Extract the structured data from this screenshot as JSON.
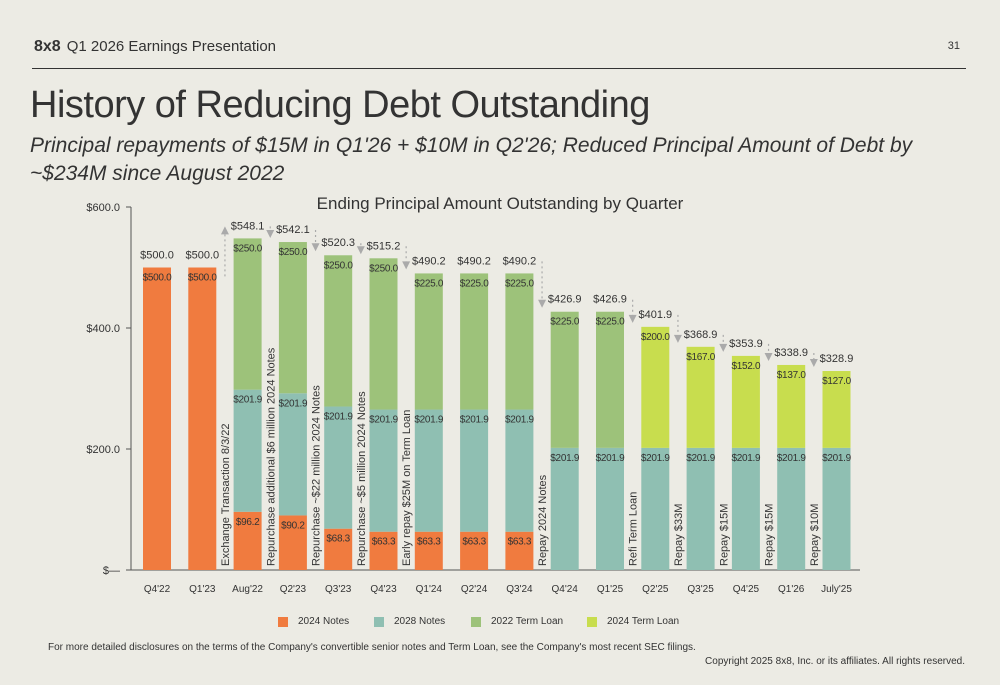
{
  "header": {
    "logo": "8x8",
    "presentation": "Q1 2026 Earnings Presentation",
    "page_number": "31"
  },
  "title": "History of Reducing Debt Outstanding",
  "subtitle": "Principal repayments of $15M in Q1'26 + $10M in Q2'26; Reduced Principal Amount of Debt by ~$234M since August 2022",
  "footnote": "For more detailed disclosures on the terms of the Company's convertible senior notes and Term Loan, see the Company's most recent SEC filings.",
  "copyright": "Copyright 2025 8x8, Inc. or its affiliates. All rights reserved.",
  "colors": {
    "notes2024": "#f07b3f",
    "notes2028": "#8fbfb2",
    "term2022": "#9dc27a",
    "term2024": "#c8dd4e"
  },
  "chart_data": {
    "type": "bar",
    "stacked": true,
    "title": "Ending Principal Amount Outstanding by Quarter",
    "ylim": [
      0,
      600
    ],
    "yticks": [
      0,
      200,
      400,
      600
    ],
    "ytick_labels": [
      "$—",
      "$200.0",
      "$400.0",
      "$600.0"
    ],
    "categories": [
      "Q4'22",
      "Q1'23",
      "Aug'22",
      "Q2'23",
      "Q3'23",
      "Q4'23",
      "Q1'24",
      "Q2'24",
      "Q3'24",
      "Q4'24",
      "Q1'25",
      "Q2'25",
      "Q3'25",
      "Q4'25",
      "Q1'26",
      "July'25"
    ],
    "totals": [
      500.0,
      500.0,
      548.1,
      542.1,
      520.3,
      515.2,
      490.2,
      490.2,
      490.2,
      426.9,
      426.9,
      401.9,
      368.9,
      353.9,
      338.9,
      328.9
    ],
    "total_labels": [
      "$500.0",
      "$500.0",
      "$548.1",
      "$542.1",
      "$520.3",
      "$515.2",
      "$490.2",
      "$490.2",
      "$490.2",
      "$426.9",
      "$426.9",
      "$401.9",
      "$368.9",
      "$353.9",
      "$338.9",
      "$328.9"
    ],
    "series": [
      {
        "name": "2024 Notes",
        "color": "#f07b3f",
        "values": [
          500.0,
          500.0,
          96.2,
          90.2,
          68.3,
          63.3,
          63.3,
          63.3,
          63.3,
          0,
          0,
          0,
          0,
          0,
          0,
          0
        ],
        "labels": [
          "$500.0",
          "$500.0",
          "$96.2",
          "$90.2",
          "$68.3",
          "$63.3",
          "$63.3",
          "$63.3",
          "$63.3",
          "",
          "",
          "",
          "",
          "",
          "",
          ""
        ]
      },
      {
        "name": "2028 Notes",
        "color": "#8fbfb2",
        "values": [
          0,
          0,
          201.9,
          201.9,
          201.9,
          201.9,
          201.9,
          201.9,
          201.9,
          201.9,
          201.9,
          201.9,
          201.9,
          201.9,
          201.9,
          201.9
        ],
        "labels": [
          "",
          "",
          "$201.9",
          "$201.9",
          "$201.9",
          "$201.9",
          "$201.9",
          "$201.9",
          "$201.9",
          "$201.9",
          "$201.9",
          "$201.9",
          "$201.9",
          "$201.9",
          "$201.9",
          "$201.9"
        ]
      },
      {
        "name": "2022 Term Loan",
        "color": "#9dc27a",
        "values": [
          0,
          0,
          250.0,
          250.0,
          250.0,
          250.0,
          225.0,
          225.0,
          225.0,
          225.0,
          225.0,
          0,
          0,
          0,
          0,
          0
        ],
        "labels": [
          "",
          "",
          "$250.0",
          "$250.0",
          "$250.0",
          "$250.0",
          "$225.0",
          "$225.0",
          "$225.0",
          "$225.0",
          "$225.0",
          "",
          "",
          "",
          "",
          ""
        ]
      },
      {
        "name": "2024 Term Loan",
        "color": "#c8dd4e",
        "values": [
          0,
          0,
          0,
          0,
          0,
          0,
          0,
          0,
          0,
          0,
          0,
          200.0,
          167.0,
          152.0,
          137.0,
          127.0
        ],
        "labels": [
          "",
          "",
          "",
          "",
          "",
          "",
          "",
          "",
          "",
          "",
          "",
          "$200.0",
          "$167.0",
          "$152.0",
          "$137.0",
          "$127.0"
        ]
      }
    ],
    "annotations": [
      {
        "after": 1,
        "text": "Exchange Transaction 8/3/22",
        "arrow": "up"
      },
      {
        "after": 2,
        "text": "Repurchase additional $6 million  2024 Notes",
        "arrow": "down"
      },
      {
        "after": 3,
        "text": "Repurchase  ~$22 million  2024 Notes",
        "arrow": "down"
      },
      {
        "after": 4,
        "text": "Repurchase  ~$5 million  2024 Notes",
        "arrow": "down"
      },
      {
        "after": 5,
        "text": "Early repay $25M on Term Loan",
        "arrow": "down"
      },
      {
        "after": 8,
        "text": "Repay 2024 Notes",
        "arrow": "down"
      },
      {
        "after": 10,
        "text": "Refi Term Loan",
        "arrow": "down"
      },
      {
        "after": 11,
        "text": "Repay $33M",
        "arrow": "down"
      },
      {
        "after": 12,
        "text": "Repay $15M",
        "arrow": "down"
      },
      {
        "after": 13,
        "text": "Repay $15M",
        "arrow": "down"
      },
      {
        "after": 14,
        "text": "Repay $10M",
        "arrow": "down"
      }
    ]
  }
}
